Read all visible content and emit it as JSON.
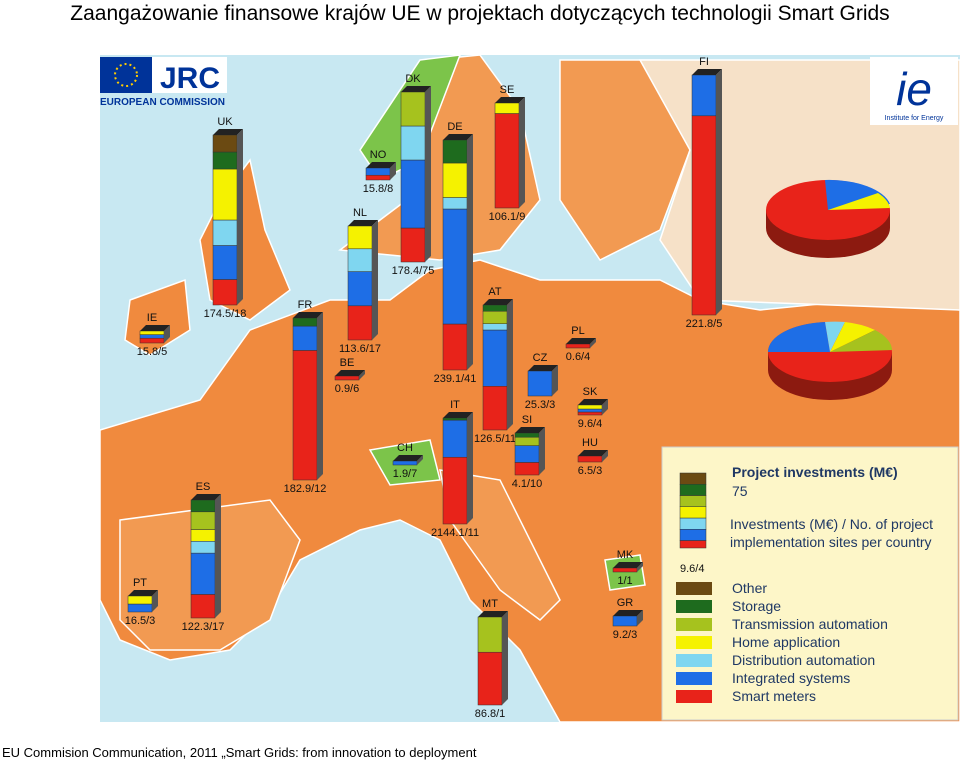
{
  "title": "Zaangażowanie finansowe krajów UE w projektach dotyczących technologii Smart Grids",
  "caption": "EU Commision Communication, 2011 „Smart Grids: from innovation to deployment",
  "logos": {
    "jrc": "JRC",
    "commission": "EUROPEAN COMMISSION",
    "ie": "ie",
    "ie_sub": "Institute for Energy"
  },
  "countries": [
    {
      "code": "UK",
      "label": "174.5/18"
    },
    {
      "code": "IE",
      "label": "15.8/5"
    },
    {
      "code": "FR",
      "label": "182.9/12"
    },
    {
      "code": "BE",
      "label": "0.9/6"
    },
    {
      "code": "NL",
      "label": "113.6/17"
    },
    {
      "code": "NO",
      "label": "15.8/8"
    },
    {
      "code": "DK",
      "label": "178.4/75"
    },
    {
      "code": "DE",
      "label": "239.1/41"
    },
    {
      "code": "SE",
      "label": "106.1/9"
    },
    {
      "code": "FI",
      "label": "221.8/5"
    },
    {
      "code": "PL",
      "label": "0.6/4"
    },
    {
      "code": "AT",
      "label": "126.5/11"
    },
    {
      "code": "CZ",
      "label": "25.3/3"
    },
    {
      "code": "SK",
      "label": "9.6/4"
    },
    {
      "code": "SI",
      "label": "4.1/10"
    },
    {
      "code": "HU",
      "label": "6.5/3"
    },
    {
      "code": "CH",
      "label": "1.9/7"
    },
    {
      "code": "IT",
      "label": "2144.1/11"
    },
    {
      "code": "ES",
      "label": "122.3/17"
    },
    {
      "code": "PT",
      "label": "16.5/3"
    },
    {
      "code": "MT",
      "label": "86.8/1"
    },
    {
      "code": "GR",
      "label": "9.2/3"
    },
    {
      "code": "MK",
      "label": "1/1"
    }
  ],
  "legend": {
    "title": "Project investments (M€)",
    "value": 75,
    "sample_label": "9.6/4",
    "description": "Investments (M€) / No. of project implementation sites per country",
    "items": [
      {
        "name": "Other",
        "color": "#6b4a12"
      },
      {
        "name": "Storage",
        "color": "#1e6b1e"
      },
      {
        "name": "Transmission automation",
        "color": "#a6c21e"
      },
      {
        "name": "Home application",
        "color": "#f5f200"
      },
      {
        "name": "Distribution automation",
        "color": "#7fd6f0"
      },
      {
        "name": "Integrated systems",
        "color": "#1e6ee6"
      },
      {
        "name": "Smart meters",
        "color": "#e8231a"
      }
    ]
  }
}
